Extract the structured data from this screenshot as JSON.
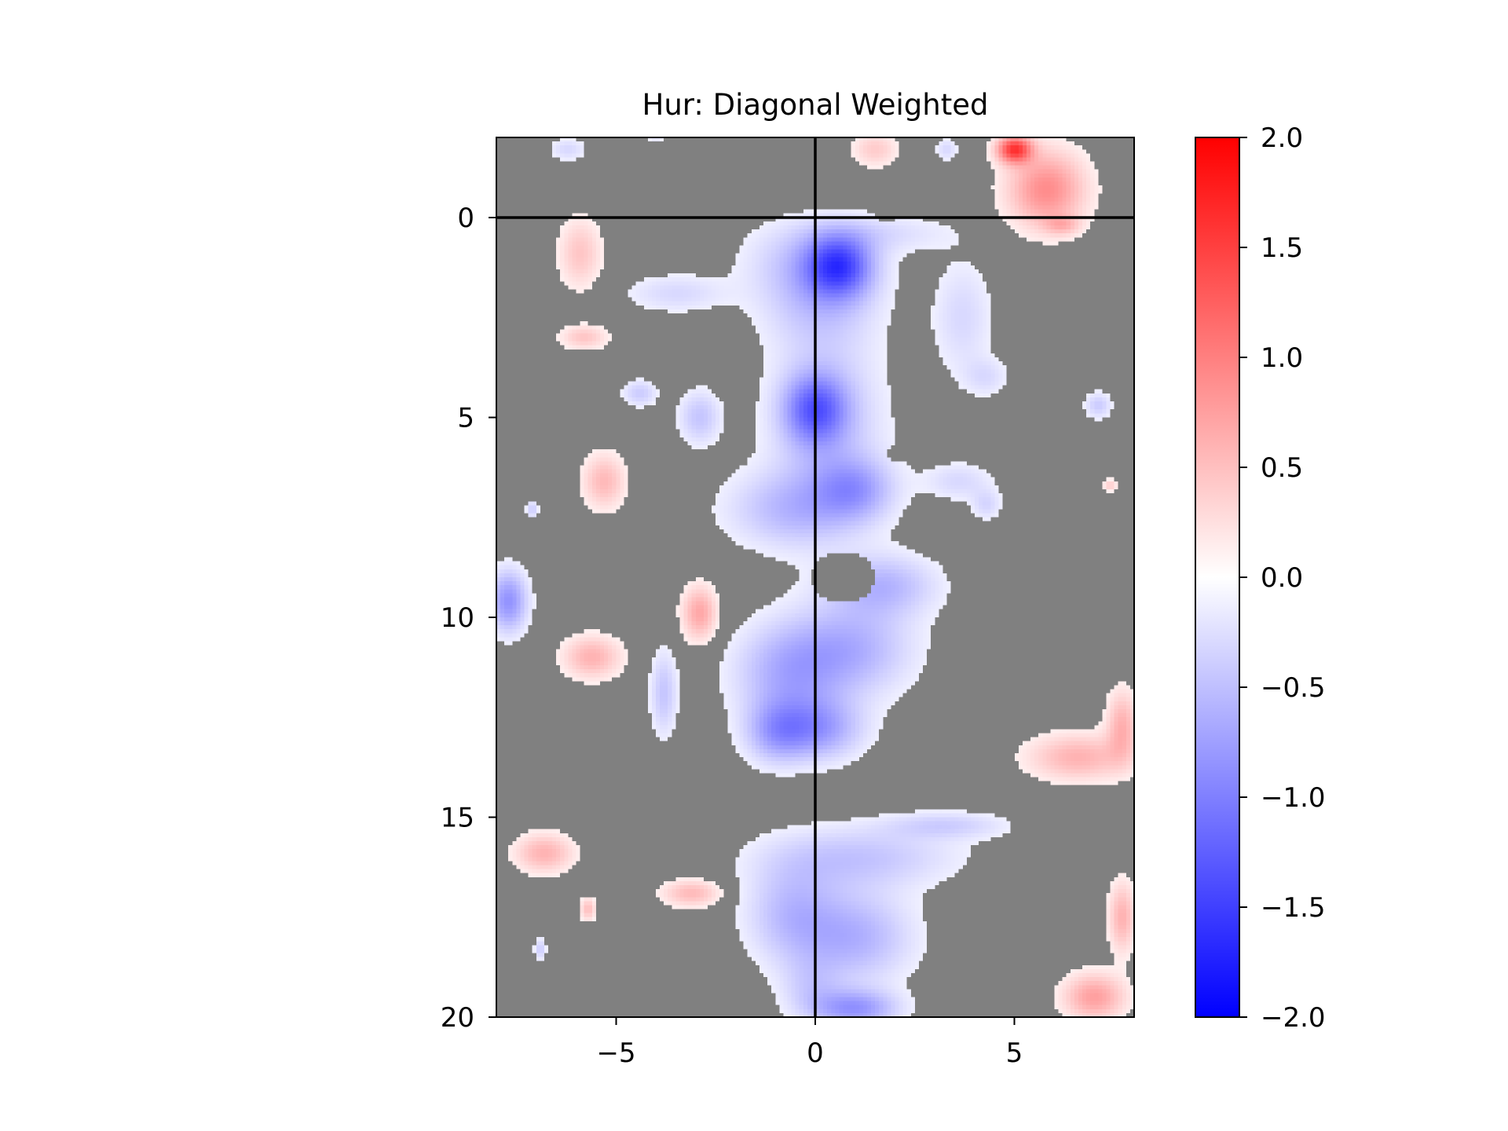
{
  "chart_data": {
    "type": "heatmap",
    "title": "Hur: Diagonal Weighted",
    "xlabel": "",
    "ylabel": "",
    "xlim": [
      -8,
      8
    ],
    "ylim": [
      20,
      -2
    ],
    "y_inverted": true,
    "x_ticks": [
      -5,
      0,
      5
    ],
    "x_tick_labels": [
      "−5",
      "0",
      "5"
    ],
    "y_ticks": [
      0,
      5,
      10,
      15,
      20
    ],
    "y_tick_labels": [
      "0",
      "5",
      "10",
      "15",
      "20"
    ],
    "reference_lines": {
      "vertical_x": 0,
      "horizontal_y": 0,
      "color": "#000000"
    },
    "masked_color": "#808080",
    "colormap": "bwr",
    "colorbar": {
      "vmin": -2.0,
      "vmax": 2.0,
      "ticks": [
        2.0,
        1.5,
        1.0,
        0.5,
        0.0,
        -0.5,
        -1.0,
        -1.5,
        -2.0
      ],
      "tick_labels": [
        "2.0",
        "1.5",
        "1.0",
        "0.5",
        "0.0",
        "−0.5",
        "−1.0",
        "−1.5",
        "−2.0"
      ]
    },
    "blobs": [
      {
        "x": -6.2,
        "y": -1.7,
        "rx": 0.5,
        "ry": 0.3,
        "v": -0.3
      },
      {
        "x": -4.0,
        "y": -1.95,
        "rx": 0.25,
        "ry": 0.15,
        "v": -0.2
      },
      {
        "x": 1.5,
        "y": -1.7,
        "rx": 0.6,
        "ry": 0.45,
        "v": 0.4
      },
      {
        "x": 3.3,
        "y": -1.7,
        "rx": 0.3,
        "ry": 0.3,
        "v": -0.3
      },
      {
        "x": 5.0,
        "y": -1.7,
        "rx": 0.45,
        "ry": 0.35,
        "v": 1.5
      },
      {
        "x": 5.8,
        "y": -0.7,
        "rx": 1.0,
        "ry": 1.0,
        "v": 0.9
      },
      {
        "x": 6.2,
        "y": 0.2,
        "rx": 0.45,
        "ry": 0.25,
        "v": 0.4
      },
      {
        "x": -5.9,
        "y": 0.9,
        "rx": 0.55,
        "ry": 0.9,
        "v": 0.45
      },
      {
        "x": -5.8,
        "y": 3.0,
        "rx": 0.6,
        "ry": 0.32,
        "v": 0.45
      },
      {
        "x": -4.4,
        "y": 4.4,
        "rx": 0.45,
        "ry": 0.35,
        "v": -0.4
      },
      {
        "x": -2.9,
        "y": 5.0,
        "rx": 0.55,
        "ry": 0.7,
        "v": -0.45
      },
      {
        "x": -5.3,
        "y": 6.6,
        "rx": 0.55,
        "ry": 0.7,
        "v": 0.55
      },
      {
        "x": -7.1,
        "y": 7.3,
        "rx": 0.15,
        "ry": 0.25,
        "v": -0.4
      },
      {
        "x": -7.7,
        "y": 9.6,
        "rx": 0.5,
        "ry": 0.8,
        "v": -0.85
      },
      {
        "x": -2.9,
        "y": 9.9,
        "rx": 0.45,
        "ry": 0.7,
        "v": 0.7
      },
      {
        "x": -5.6,
        "y": 11.0,
        "rx": 0.75,
        "ry": 0.55,
        "v": 0.6
      },
      {
        "x": -3.8,
        "y": 11.9,
        "rx": 0.35,
        "ry": 1.1,
        "v": -0.45
      },
      {
        "x": 7.1,
        "y": 4.7,
        "rx": 0.35,
        "ry": 0.35,
        "v": -0.4
      },
      {
        "x": 7.4,
        "y": 6.7,
        "rx": 0.2,
        "ry": 0.15,
        "v": 0.4
      },
      {
        "x": 6.6,
        "y": 13.5,
        "rx": 1.3,
        "ry": 0.6,
        "v": 0.6
      },
      {
        "x": 7.7,
        "y": 12.7,
        "rx": 0.4,
        "ry": 0.9,
        "v": 0.6
      },
      {
        "x": -6.8,
        "y": 15.9,
        "rx": 0.75,
        "ry": 0.5,
        "v": 0.6
      },
      {
        "x": -3.1,
        "y": 16.9,
        "rx": 0.75,
        "ry": 0.35,
        "v": 0.55
      },
      {
        "x": -5.7,
        "y": 17.3,
        "rx": 0.2,
        "ry": 0.3,
        "v": 0.5
      },
      {
        "x": -6.9,
        "y": 18.3,
        "rx": 0.15,
        "ry": 0.3,
        "v": -0.4
      },
      {
        "x": 7.7,
        "y": 17.5,
        "rx": 0.35,
        "ry": 0.9,
        "v": 0.6
      },
      {
        "x": 7.0,
        "y": 19.5,
        "rx": 0.8,
        "ry": 0.6,
        "v": 0.75
      },
      {
        "x": -0.3,
        "y": 1.0,
        "rx": 1.6,
        "ry": 1.0,
        "v": -0.3
      },
      {
        "x": -3.5,
        "y": 1.9,
        "rx": 1.3,
        "ry": 0.5,
        "v": -0.3
      },
      {
        "x": 1.8,
        "y": 0.4,
        "rx": 1.8,
        "ry": 0.5,
        "v": -0.25
      },
      {
        "x": 3.7,
        "y": 2.5,
        "rx": 0.8,
        "ry": 1.5,
        "v": -0.3
      },
      {
        "x": 4.3,
        "y": 4.0,
        "rx": 0.6,
        "ry": 0.5,
        "v": -0.25
      },
      {
        "x": 3.6,
        "y": 6.6,
        "rx": 0.9,
        "ry": 0.5,
        "v": -0.3
      },
      {
        "x": 4.3,
        "y": 7.2,
        "rx": 0.4,
        "ry": 0.4,
        "v": -0.3
      },
      {
        "x": 0.6,
        "y": 1.2,
        "rx": 0.85,
        "ry": 0.8,
        "v": -1.2
      },
      {
        "x": 0.1,
        "y": 2.0,
        "rx": 1.5,
        "ry": 1.3,
        "v": -0.45
      },
      {
        "x": 0.0,
        "y": 4.8,
        "rx": 0.8,
        "ry": 0.9,
        "v": -1.0
      },
      {
        "x": 0.3,
        "y": 5.2,
        "rx": 1.5,
        "ry": 2.4,
        "v": -0.45
      },
      {
        "x": -0.6,
        "y": 7.3,
        "rx": 1.7,
        "ry": 1.0,
        "v": -0.5
      },
      {
        "x": 1.0,
        "y": 6.8,
        "rx": 1.0,
        "ry": 0.8,
        "v": -0.6
      },
      {
        "x": 1.7,
        "y": 9.2,
        "rx": 1.4,
        "ry": 0.8,
        "v": -0.55
      },
      {
        "x": 0.9,
        "y": 10.8,
        "rx": 1.6,
        "ry": 1.2,
        "v": -0.6
      },
      {
        "x": -0.7,
        "y": 11.4,
        "rx": 1.4,
        "ry": 1.3,
        "v": -0.6
      },
      {
        "x": 0.0,
        "y": 12.8,
        "rx": 1.2,
        "ry": 0.8,
        "v": -0.75
      },
      {
        "x": -1.0,
        "y": 12.9,
        "rx": 0.8,
        "ry": 0.8,
        "v": -0.5
      },
      {
        "x": 1.1,
        "y": 16.0,
        "rx": 2.5,
        "ry": 0.8,
        "v": -0.45
      },
      {
        "x": -0.6,
        "y": 17.4,
        "rx": 1.2,
        "ry": 1.3,
        "v": -0.5
      },
      {
        "x": 1.0,
        "y": 18.0,
        "rx": 1.5,
        "ry": 1.2,
        "v": -0.6
      },
      {
        "x": -0.1,
        "y": 19.3,
        "rx": 0.8,
        "ry": 0.8,
        "v": -0.3
      },
      {
        "x": 1.0,
        "y": 19.8,
        "rx": 1.1,
        "ry": 0.5,
        "v": -0.8
      },
      {
        "x": 3.3,
        "y": 15.2,
        "rx": 1.6,
        "ry": 0.35,
        "v": -0.35
      }
    ],
    "holes": [
      {
        "x": 0.7,
        "y": 9.0,
        "rx": 0.8,
        "ry": 0.65
      },
      {
        "x": 2.1,
        "y": 3.0,
        "rx": 0.3,
        "ry": 0.3
      },
      {
        "x": 2.1,
        "y": 5.9,
        "rx": 0.3,
        "ry": 0.2
      },
      {
        "x": 1.8,
        "y": -0.2,
        "rx": 0.3,
        "ry": 0.3
      }
    ]
  }
}
